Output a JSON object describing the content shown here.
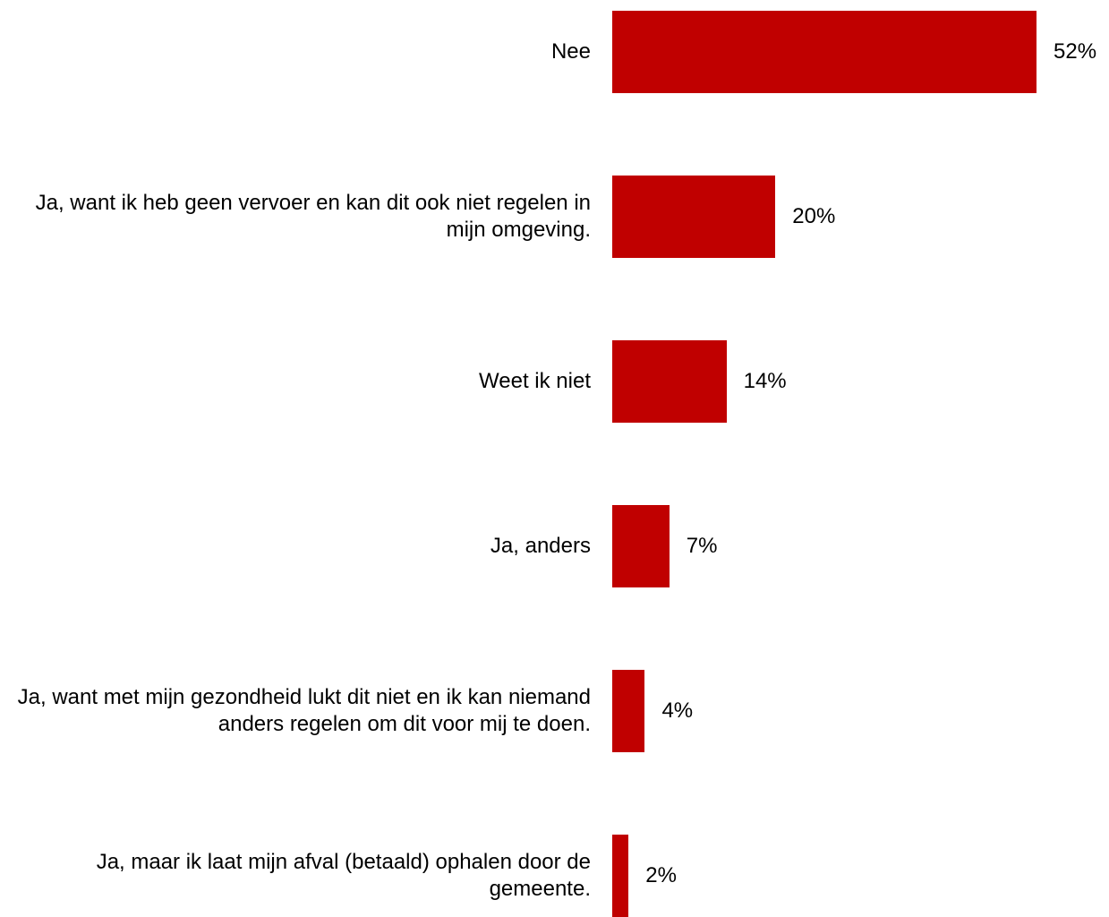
{
  "chart_data": {
    "type": "bar",
    "orientation": "horizontal",
    "categories": [
      "Nee",
      "Ja, want ik heb geen vervoer en kan dit ook niet regelen in mijn omgeving.",
      "Weet ik niet",
      "Ja, anders",
      "Ja, want met mijn gezondheid lukt dit niet en ik kan niemand anders regelen om dit voor mij te doen.",
      "Ja, maar ik laat mijn afval (betaald) ophalen door de gemeente."
    ],
    "values": [
      52,
      20,
      14,
      7,
      4,
      2
    ],
    "value_labels": [
      "52%",
      "20%",
      "14%",
      "7%",
      "4%",
      "2%"
    ],
    "unit": "%",
    "title": "",
    "xlabel": "",
    "ylabel": "",
    "grid": false,
    "legend": "none",
    "bar_color": "#c00000"
  }
}
